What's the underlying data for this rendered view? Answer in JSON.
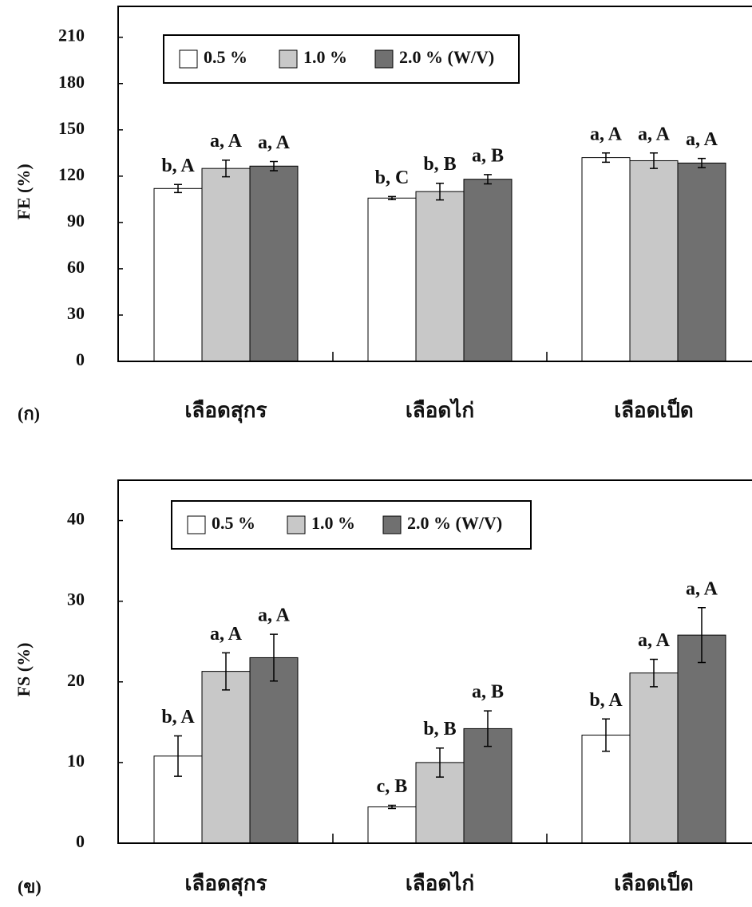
{
  "chart_data": [
    {
      "type": "bar",
      "panel": "(ก)",
      "ylabel": "FE (%)",
      "categories": [
        "เลือดสุกร",
        "เลือดไก่",
        "เลือดเป็ด"
      ],
      "ylim": [
        0,
        230
      ],
      "yticks": [
        0,
        30,
        60,
        90,
        120,
        150,
        180,
        210
      ],
      "series": [
        {
          "name": "0.5 %",
          "color": "#ffffff",
          "values": [
            112,
            105.8,
            132
          ],
          "errors": [
            2.6,
            1,
            3
          ],
          "labels": [
            "b, A",
            "b, C",
            "a, A"
          ]
        },
        {
          "name": "1.0 %",
          "color": "#c8c8c8",
          "values": [
            125,
            110,
            130
          ],
          "errors": [
            5.4,
            5.4,
            5
          ],
          "labels": [
            "a, A",
            "b, B",
            "a, A"
          ]
        },
        {
          "name": "2.0 % (W/V)",
          "color": "#707070",
          "values": [
            126.5,
            118,
            128.5
          ],
          "errors": [
            3,
            3,
            3
          ],
          "labels": [
            "a, A",
            "a, B",
            "a, A"
          ]
        }
      ]
    },
    {
      "type": "bar",
      "panel": "(ข)",
      "ylabel": "FS (%)",
      "categories": [
        "เลือดสุกร",
        "เลือดไก่",
        "เลือดเป็ด"
      ],
      "ylim": [
        0,
        45
      ],
      "yticks": [
        0,
        10,
        20,
        30,
        40
      ],
      "series": [
        {
          "name": "0.5 %",
          "color": "#ffffff",
          "values": [
            10.8,
            4.5,
            13.4
          ],
          "errors": [
            2.5,
            0.2,
            2
          ],
          "labels": [
            "b, A",
            "c, B",
            "b, A"
          ]
        },
        {
          "name": "1.0 %",
          "color": "#c8c8c8",
          "values": [
            21.3,
            10,
            21.1
          ],
          "errors": [
            2.3,
            1.8,
            1.7
          ],
          "labels": [
            "a, A",
            "b, B",
            "a, A"
          ]
        },
        {
          "name": "2.0 % (W/V)",
          "color": "#707070",
          "values": [
            23,
            14.2,
            25.8
          ],
          "errors": [
            2.9,
            2.2,
            3.4
          ],
          "labels": [
            "a, A",
            "a, B",
            "a, A"
          ]
        }
      ]
    }
  ]
}
